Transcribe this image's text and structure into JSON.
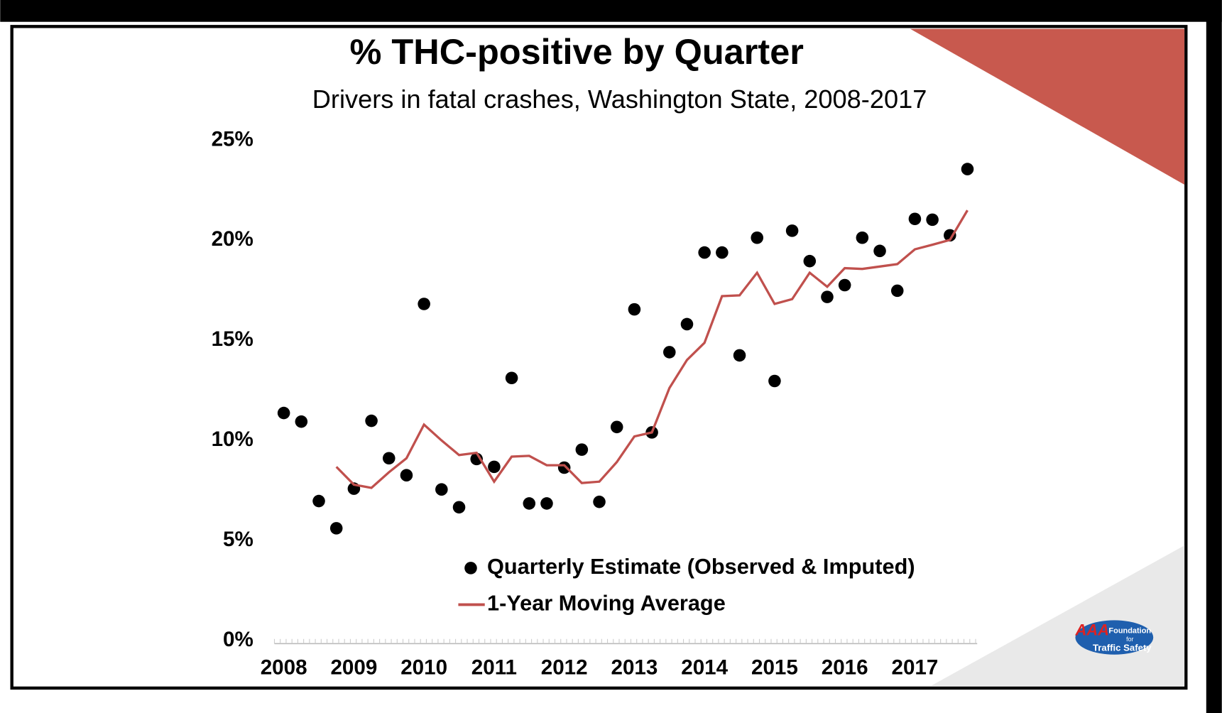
{
  "chart_data": {
    "type": "scatter",
    "title": "% THC-positive by Quarter",
    "subtitle": "Drivers in fatal crashes, Washington State, 2008-2017",
    "categories": [
      "2008",
      null,
      null,
      null,
      "2009",
      null,
      null,
      null,
      "2010",
      null,
      null,
      null,
      "2011",
      null,
      null,
      null,
      "2012",
      null,
      null,
      null,
      "2013",
      null,
      null,
      null,
      "2014",
      null,
      null,
      null,
      "2015",
      null,
      null,
      null,
      "2016",
      null,
      null,
      null,
      "2017",
      null,
      null,
      null
    ],
    "series": [
      {
        "name": "Quarterly Estimate (Observed & Imputed)",
        "type": "scatter",
        "color": "#000000",
        "values": [
          11.37,
          10.94,
          6.97,
          5.61,
          7.59,
          10.98,
          9.11,
          8.26,
          16.82,
          7.55,
          6.66,
          9.07,
          8.68,
          13.12,
          6.85,
          6.85,
          8.64,
          9.54,
          6.93,
          10.67,
          16.55,
          10.4,
          14.41,
          15.81,
          19.39,
          19.39,
          14.25,
          20.13,
          12.97,
          20.48,
          18.96,
          17.17,
          17.76,
          20.13,
          19.47,
          17.48,
          21.07,
          21.03,
          20.25,
          23.56
        ]
      },
      {
        "name": "1-Year Moving Average",
        "type": "line",
        "color": "#c0504d",
        "values": [
          null,
          null,
          null,
          8.68,
          7.79,
          7.63,
          8.41,
          9.11,
          10.79,
          10.0,
          9.27,
          9.38,
          7.94,
          9.19,
          9.23,
          8.76,
          8.76,
          7.87,
          7.94,
          8.92,
          10.2,
          10.4,
          12.62,
          14.02,
          14.88,
          17.21,
          17.25,
          18.38,
          16.82,
          17.06,
          18.38,
          17.68,
          18.61,
          18.57,
          18.69,
          18.81,
          19.55,
          19.78,
          20.02,
          21.5
        ]
      }
    ],
    "ylim": [
      0,
      25
    ],
    "yticks": [
      {
        "value": 0,
        "label": "0%"
      },
      {
        "value": 5,
        "label": "5%"
      },
      {
        "value": 10,
        "label": "10%"
      },
      {
        "value": 15,
        "label": "15%"
      },
      {
        "value": 20,
        "label": "20%"
      },
      {
        "value": 25,
        "label": "25%"
      }
    ],
    "grid": false
  },
  "logo": {
    "mark": "AAA",
    "text": [
      "Foundation",
      "for",
      "Traffic Safety"
    ]
  }
}
